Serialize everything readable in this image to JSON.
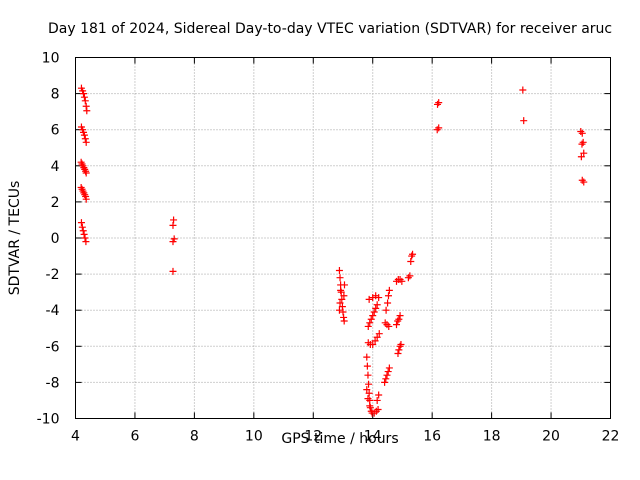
{
  "chart_data": {
    "type": "scatter",
    "title": "Day 181 of 2024, Sidereal Day-to-day VTEC variation (SDTVAR) for receiver aruc",
    "xlabel": "GPS time / hours",
    "ylabel": "SDTVAR / TECUs",
    "xlim": [
      4,
      22
    ],
    "ylim": [
      -10,
      10
    ],
    "xticks": [
      "4",
      "6",
      "8",
      "10",
      "12",
      "14",
      "16",
      "18",
      "20",
      "22"
    ],
    "yticks": [
      "-10",
      "-8",
      "-6",
      "-4",
      "-2",
      "0",
      "2",
      "4",
      "6",
      "8",
      "10"
    ],
    "grid": true,
    "marker": "plus",
    "color": "#ff0000",
    "series": [
      {
        "name": "SDTVAR",
        "points": [
          [
            4.2,
            8.3
          ],
          [
            4.24,
            8.15
          ],
          [
            4.27,
            8.0
          ],
          [
            4.3,
            7.8
          ],
          [
            4.33,
            7.6
          ],
          [
            4.36,
            7.3
          ],
          [
            4.38,
            7.05
          ],
          [
            4.2,
            6.15
          ],
          [
            4.24,
            6.0
          ],
          [
            4.27,
            5.85
          ],
          [
            4.3,
            5.7
          ],
          [
            4.33,
            5.5
          ],
          [
            4.36,
            5.3
          ],
          [
            4.19,
            4.2
          ],
          [
            4.22,
            4.1
          ],
          [
            4.25,
            4.0
          ],
          [
            4.28,
            3.9
          ],
          [
            4.31,
            3.8
          ],
          [
            4.34,
            3.7
          ],
          [
            4.36,
            3.6
          ],
          [
            4.19,
            2.8
          ],
          [
            4.22,
            2.7
          ],
          [
            4.25,
            2.6
          ],
          [
            4.28,
            2.5
          ],
          [
            4.31,
            2.4
          ],
          [
            4.34,
            2.3
          ],
          [
            4.36,
            2.15
          ],
          [
            4.2,
            0.85
          ],
          [
            4.23,
            0.6
          ],
          [
            4.26,
            0.4
          ],
          [
            4.29,
            0.2
          ],
          [
            4.32,
            0.0
          ],
          [
            4.35,
            -0.2
          ],
          [
            7.3,
            1.0
          ],
          [
            7.28,
            0.7
          ],
          [
            7.32,
            -0.05
          ],
          [
            7.28,
            -0.2
          ],
          [
            7.28,
            -1.85
          ],
          [
            12.88,
            -1.8
          ],
          [
            12.9,
            -2.2
          ],
          [
            12.92,
            -2.6
          ],
          [
            12.94,
            -3.0
          ],
          [
            12.96,
            -3.4
          ],
          [
            12.98,
            -3.8
          ],
          [
            13.0,
            -4.1
          ],
          [
            13.02,
            -4.4
          ],
          [
            13.04,
            -4.6
          ],
          [
            12.88,
            -4.0
          ],
          [
            12.9,
            -3.6
          ],
          [
            12.92,
            -2.9
          ],
          [
            13.03,
            -3.2
          ],
          [
            13.05,
            -2.6
          ],
          [
            13.8,
            -6.6
          ],
          [
            13.82,
            -7.1
          ],
          [
            13.84,
            -7.6
          ],
          [
            13.86,
            -8.1
          ],
          [
            13.88,
            -8.6
          ],
          [
            13.9,
            -9.0
          ],
          [
            13.92,
            -9.4
          ],
          [
            13.95,
            -9.6
          ],
          [
            13.98,
            -9.7
          ],
          [
            14.05,
            -9.7
          ],
          [
            14.12,
            -9.6
          ],
          [
            14.18,
            -9.5
          ],
          [
            13.85,
            -4.9
          ],
          [
            13.9,
            -4.7
          ],
          [
            13.95,
            -4.5
          ],
          [
            14.0,
            -4.3
          ],
          [
            14.05,
            -4.1
          ],
          [
            14.1,
            -3.9
          ],
          [
            14.15,
            -3.7
          ],
          [
            13.88,
            -3.4
          ],
          [
            14.0,
            -3.3
          ],
          [
            14.1,
            -3.2
          ],
          [
            14.2,
            -3.3
          ],
          [
            13.85,
            -5.8
          ],
          [
            13.92,
            -5.9
          ],
          [
            14.0,
            -5.9
          ],
          [
            14.08,
            -5.7
          ],
          [
            14.15,
            -5.5
          ],
          [
            14.22,
            -5.3
          ],
          [
            13.8,
            -8.4
          ],
          [
            13.84,
            -8.9
          ],
          [
            13.9,
            -9.3
          ],
          [
            14.15,
            -9.0
          ],
          [
            14.2,
            -8.7
          ],
          [
            14.4,
            -8.0
          ],
          [
            14.44,
            -7.8
          ],
          [
            14.48,
            -7.6
          ],
          [
            14.52,
            -7.4
          ],
          [
            14.56,
            -7.2
          ],
          [
            14.42,
            -4.7
          ],
          [
            14.48,
            -4.8
          ],
          [
            14.54,
            -4.9
          ],
          [
            14.45,
            -4.0
          ],
          [
            14.5,
            -3.6
          ],
          [
            14.53,
            -3.2
          ],
          [
            14.56,
            -2.9
          ],
          [
            14.85,
            -6.4
          ],
          [
            14.88,
            -6.2
          ],
          [
            14.92,
            -6.0
          ],
          [
            14.95,
            -5.9
          ],
          [
            14.8,
            -4.8
          ],
          [
            14.84,
            -4.6
          ],
          [
            14.88,
            -4.5
          ],
          [
            14.92,
            -4.3
          ],
          [
            14.8,
            -2.4
          ],
          [
            14.86,
            -2.3
          ],
          [
            14.92,
            -2.3
          ],
          [
            14.98,
            -2.4
          ],
          [
            15.2,
            -2.2
          ],
          [
            15.25,
            -2.1
          ],
          [
            15.28,
            -1.3
          ],
          [
            15.31,
            -1.0
          ],
          [
            15.34,
            -0.9
          ],
          [
            16.18,
            7.4
          ],
          [
            16.22,
            7.5
          ],
          [
            16.17,
            6.0
          ],
          [
            16.22,
            6.1
          ],
          [
            19.05,
            8.2
          ],
          [
            19.08,
            6.5
          ],
          [
            21.0,
            5.9
          ],
          [
            21.05,
            5.8
          ],
          [
            21.08,
            5.3
          ],
          [
            21.04,
            5.2
          ],
          [
            21.1,
            4.7
          ],
          [
            21.02,
            4.5
          ],
          [
            21.05,
            3.2
          ],
          [
            21.1,
            3.1
          ]
        ]
      }
    ]
  }
}
